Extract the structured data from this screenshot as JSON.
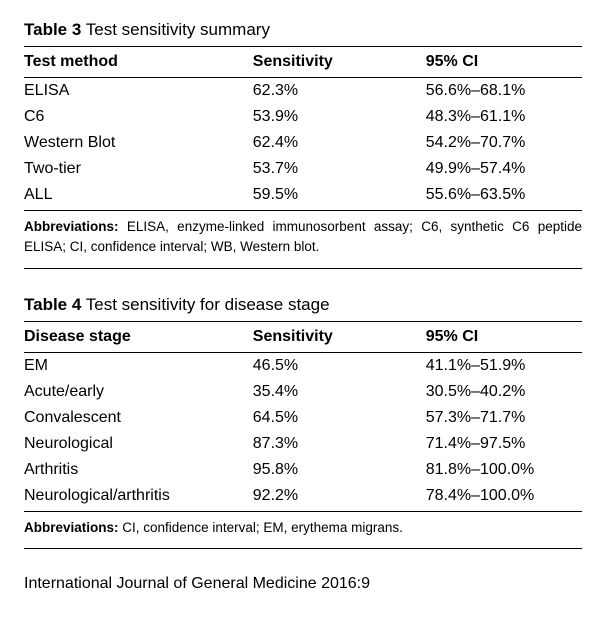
{
  "table3": {
    "label": "Table 3",
    "title": "Test sensitivity summary",
    "columns": [
      "Test method",
      "Sensitivity",
      "95% CI"
    ],
    "rows": [
      [
        "ELISA",
        "62.3%",
        "56.6%–68.1%"
      ],
      [
        "C6",
        "53.9%",
        "48.3%–61.1%"
      ],
      [
        "Western Blot",
        "62.4%",
        "54.2%–70.7%"
      ],
      [
        "Two-tier",
        "53.7%",
        "49.9%–57.4%"
      ],
      [
        "ALL",
        "59.5%",
        "55.6%–63.5%"
      ]
    ],
    "note_label": "Abbreviations:",
    "note_text": "ELISA, enzyme-linked immunosorbent assay; C6, synthetic C6 peptide ELISA; CI, confidence interval; WB, Western blot."
  },
  "table4": {
    "label": "Table 4",
    "title": "Test sensitivity for disease stage",
    "columns": [
      "Disease stage",
      "Sensitivity",
      "95% CI"
    ],
    "rows": [
      [
        "EM",
        "46.5%",
        "41.1%–51.9%"
      ],
      [
        "Acute/early",
        "35.4%",
        "30.5%–40.2%"
      ],
      [
        "Convalescent",
        "64.5%",
        "57.3%–71.7%"
      ],
      [
        "Neurological",
        "87.3%",
        "71.4%–97.5%"
      ],
      [
        "Arthritis",
        "95.8%",
        "81.8%–100.0%"
      ],
      [
        "Neurological/arthritis",
        "92.2%",
        "78.4%–100.0%"
      ]
    ],
    "note_label": "Abbreviations:",
    "note_text": "CI, confidence interval; EM, erythema migrans."
  },
  "footer": "International Journal of General Medicine 2016:9",
  "style": {
    "text_color": "#000000",
    "background_color": "#ffffff",
    "rule_color": "#000000",
    "body_fontsize": 15,
    "title_fontsize": 17,
    "note_fontsize": 13.5,
    "col_widths_pct": [
      41,
      31,
      28
    ]
  }
}
